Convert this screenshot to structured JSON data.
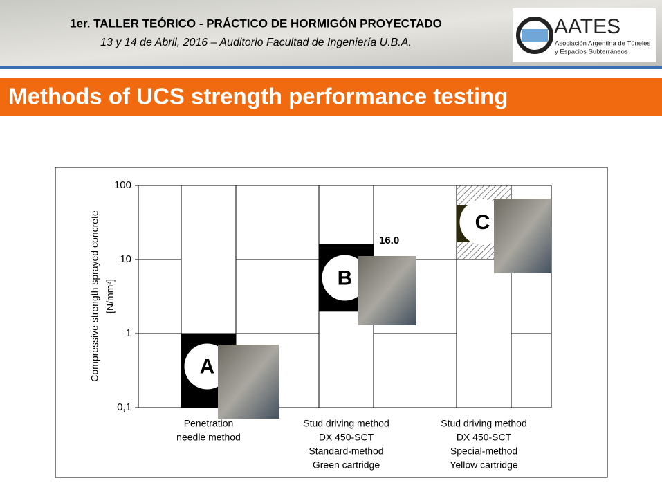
{
  "header": {
    "line1": "1er. TALLER TEÓRICO - PRÁCTICO DE HORMIGÓN PROYECTADO",
    "line2": "13 y 14 de Abril, 2016 – Auditorio Facultad de Ingeniería U.B.A.",
    "logo_name": "AATES",
    "logo_sub1": "Asociación Argentina de Túneles",
    "logo_sub2": "y Espacios Subterráneos"
  },
  "slide_title": "Methods of UCS strength performance testing",
  "chart_data": {
    "type": "range_bar",
    "log": true,
    "y_label": [
      "Compressive strength sprayed concrete",
      "[N/mm²]"
    ],
    "categories": [
      [
        "Penetration",
        "needle method"
      ],
      [
        "Stud driving method",
        "DX 450-SCT",
        "Standard-method",
        "Green cartridge"
      ],
      [
        "Stud driving method",
        "DX 450-SCT",
        "Special-method",
        "Yellow cartridge"
      ]
    ],
    "markers": [
      "A",
      "B",
      "C"
    ],
    "low": [
      0.1,
      2,
      10
    ],
    "high": [
      1,
      16,
      100
    ],
    "value_labels": [
      null,
      "16.0",
      null
    ],
    "colors": [
      "#000000",
      "#000000",
      "hatch"
    ],
    "ylim": [
      0.1,
      100
    ],
    "yticks": [
      {
        "value": 0.1,
        "label": "0,1"
      },
      1,
      10,
      100
    ],
    "grid": true
  }
}
